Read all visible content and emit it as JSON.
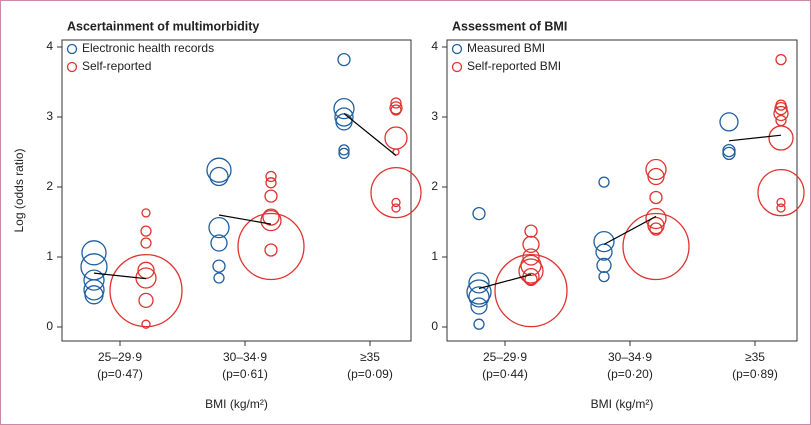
{
  "chart_data": [
    {
      "type": "bubble",
      "title": "Ascertainment of multimorbidity",
      "ylabel": "Log (odds ratio)",
      "xlabel": "BMI (kg/m²)",
      "categories": [
        "25–29·9",
        "30–34·9",
        "≥35"
      ],
      "p_labels": [
        "(p=0·47)",
        "(p=0·61)",
        "(p=0·09)"
      ],
      "ylim": [
        -0.2,
        4.1
      ],
      "yticks": [
        0,
        1,
        2,
        3,
        4
      ],
      "legend": "upper left",
      "series": [
        {
          "name": "Electronic health records",
          "color": "#1f5fa0",
          "values": [
            [
              1.06,
              0.86,
              0.67,
              0.53,
              0.46
            ],
            [
              2.24,
              2.15,
              1.42,
              1.2,
              0.87,
              0.7
            ],
            [
              3.82,
              3.12,
              3.0,
              2.93,
              2.53,
              2.48
            ]
          ],
          "sizes": [
            [
              12,
              13,
              10,
              10,
              9
            ],
            [
              12,
              9,
              10,
              8,
              6,
              5
            ],
            [
              6,
              10,
              9,
              8,
              5,
              5
            ]
          ],
          "pooled": [
            0.77,
            1.6,
            3.05
          ]
        },
        {
          "name": "Self-reported",
          "color": "#e0332f",
          "values": [
            [
              1.63,
              1.37,
              1.2,
              0.81,
              0.7,
              0.52,
              0.38,
              0.04
            ],
            [
              2.15,
              2.06,
              1.87,
              1.57,
              1.52,
              1.15,
              1.1
            ],
            [
              3.2,
              3.13,
              3.1,
              2.7,
              2.5,
              1.92,
              1.78,
              1.7
            ]
          ],
          "sizes": [
            [
              4,
              5,
              5,
              8,
              10,
              36,
              7,
              4
            ],
            [
              5,
              5,
              6,
              8,
              10,
              33,
              6
            ],
            [
              5,
              6,
              5,
              11,
              3,
              25,
              4,
              4
            ]
          ],
          "pooled": [
            0.69,
            1.47,
            2.45
          ]
        }
      ]
    },
    {
      "type": "bubble",
      "title": "Assessment of BMI",
      "xlabel": "BMI (kg/m²)",
      "categories": [
        "25–29·9",
        "30–34·9",
        "≥35"
      ],
      "p_labels": [
        "(p=0·44)",
        "(p=0·20)",
        "(p=0·89)"
      ],
      "ylim": [
        -0.2,
        4.1
      ],
      "yticks": [
        0,
        1,
        2,
        3,
        4
      ],
      "legend": "upper left",
      "series": [
        {
          "name": "Measured BMI",
          "color": "#1f5fa0",
          "values": [
            [
              1.62,
              0.63,
              0.5,
              0.43,
              0.3,
              0.04
            ],
            [
              2.07,
              1.22,
              1.07,
              0.88,
              0.72
            ],
            [
              2.93,
              2.52,
              2.48
            ]
          ],
          "sizes": [
            [
              6,
              10,
              12,
              10,
              8,
              5
            ],
            [
              5,
              10,
              8,
              7,
              5
            ],
            [
              9,
              6,
              6
            ]
          ],
          "pooled": [
            0.55,
            1.18,
            2.66
          ]
        },
        {
          "name": "Self-reported BMI",
          "color": "#e0332f",
          "values": [
            [
              1.37,
              1.18,
              1.0,
              0.88,
              0.8,
              0.72,
              0.68,
              0.52
            ],
            [
              2.25,
              2.15,
              1.85,
              1.55,
              1.45,
              1.4,
              1.15
            ],
            [
              3.82,
              3.17,
              3.12,
              3.05,
              2.95,
              2.7,
              1.92,
              1.78,
              1.7
            ]
          ],
          "sizes": [
            [
              6,
              8,
              8,
              10,
              12,
              8,
              6,
              36
            ],
            [
              10,
              8,
              6,
              10,
              8,
              6,
              33
            ],
            [
              5,
              5,
              6,
              7,
              5,
              12,
              23,
              4,
              4
            ]
          ],
          "pooled": [
            0.75,
            1.58,
            2.74
          ]
        }
      ]
    }
  ]
}
